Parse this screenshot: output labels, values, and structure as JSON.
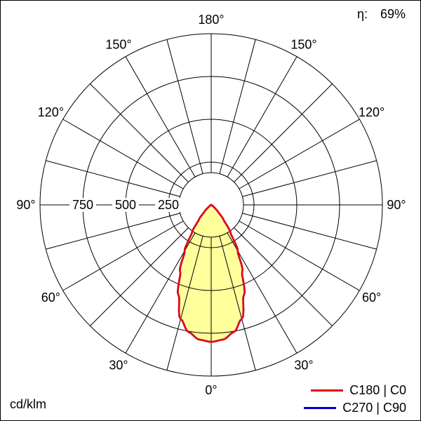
{
  "page": {
    "efficiency_label": "η:",
    "efficiency_value": "69%",
    "unit_label": "cd/klm"
  },
  "legend": [
    {
      "label": "C180 | C0",
      "color": "#e30613"
    },
    {
      "label": "C270 | C90",
      "color": "#0000c8"
    }
  ],
  "chart_data": {
    "type": "polar",
    "subtype": "luminous-intensity-distribution",
    "unit": "cd/klm",
    "radial_max": 1000,
    "radial_rings": [
      250,
      500,
      750,
      1000
    ],
    "radial_ticks": [
      750,
      500,
      250
    ],
    "grid_step_deg": 15,
    "angle_ticks": [
      {
        "deg": 0,
        "label": "0°"
      },
      {
        "deg": 30,
        "label": "30°"
      },
      {
        "deg": 60,
        "label": "60°"
      },
      {
        "deg": 90,
        "label": "90°"
      },
      {
        "deg": 120,
        "label": "120°"
      },
      {
        "deg": 150,
        "label": "150°"
      },
      {
        "deg": 180,
        "label": "180°"
      }
    ],
    "series": [
      {
        "name": "C180 | C0",
        "color": "#e30613",
        "fill": "#ffff9c",
        "symmetric": true,
        "angles_deg": [
          0,
          5,
          10,
          15,
          20,
          25,
          30,
          35,
          40,
          45,
          50,
          55,
          60,
          70,
          80,
          90
        ],
        "values": [
          800,
          790,
          755,
          690,
          560,
          430,
          310,
          195,
          110,
          55,
          25,
          12,
          5,
          2,
          0,
          0
        ]
      },
      {
        "name": "C270 | C90",
        "color": "#0000c8",
        "fill": "none",
        "symmetric": true,
        "angles_deg": [
          0,
          5,
          10,
          15,
          20,
          25,
          30,
          35,
          40,
          45,
          50,
          55,
          60,
          70,
          80,
          90
        ],
        "values": [
          800,
          790,
          755,
          690,
          560,
          430,
          310,
          195,
          110,
          55,
          25,
          12,
          5,
          2,
          0,
          0
        ]
      }
    ]
  }
}
